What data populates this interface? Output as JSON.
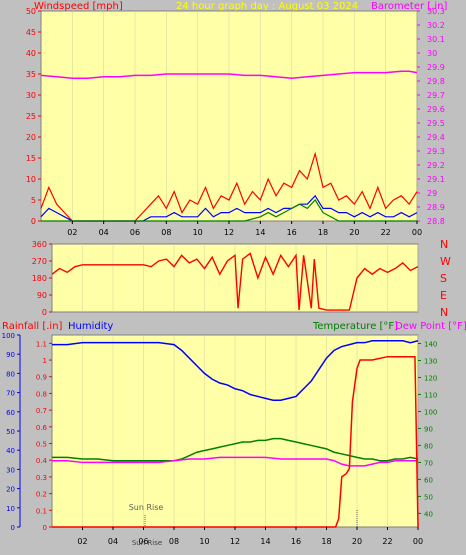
{
  "header": {
    "left_title": "Windspeed [mph]",
    "center_title": "24 hour graph day : August 03 2024",
    "right_title": "Barometer [.in]"
  },
  "colors": {
    "background": "#c0c0c0",
    "plot_bg": "#ffffa8",
    "wind_speed": "#ff0000",
    "wind_gust_alt": "#0000ff",
    "wind_green": "#008000",
    "barometer": "#ff00ff",
    "direction": "#ff0000",
    "rainfall": "#ff0000",
    "humidity": "#0000ff",
    "temperature": "#008000",
    "dew_point": "#ff00ff"
  },
  "chart_data": [
    {
      "type": "line",
      "name": "wind-baro",
      "x_ticks": [
        "02",
        "04",
        "06",
        "08",
        "10",
        "12",
        "14",
        "16",
        "18",
        "20",
        "22",
        "00"
      ],
      "xlim": [
        0,
        24
      ],
      "ylim_left": [
        0,
        50
      ],
      "yticks_left": [
        0,
        5,
        10,
        15,
        20,
        25,
        30,
        35,
        40,
        45,
        50
      ],
      "ylim_right": [
        28.8,
        30.3
      ],
      "yticks_right": [
        "28.8",
        "28.9",
        "29",
        "29.1",
        "29.2",
        "29.3",
        "29.4",
        "29.5",
        "29.6",
        "29.7",
        "29.8",
        "29.9",
        "30",
        "30.1",
        "30.2",
        "30.3"
      ],
      "series": [
        {
          "key": "barometer",
          "axis": "right",
          "x": [
            0,
            1,
            2,
            3,
            4,
            5,
            6,
            7,
            8,
            9,
            10,
            11,
            12,
            13,
            14,
            15,
            16,
            17,
            18,
            19,
            20,
            21,
            22,
            23,
            23.5,
            24
          ],
          "values": [
            29.84,
            29.83,
            29.82,
            29.82,
            29.83,
            29.83,
            29.84,
            29.84,
            29.85,
            29.85,
            29.85,
            29.85,
            29.85,
            29.84,
            29.84,
            29.83,
            29.82,
            29.83,
            29.84,
            29.85,
            29.86,
            29.86,
            29.86,
            29.87,
            29.87,
            29.86
          ]
        },
        {
          "key": "wind_speed",
          "axis": "left",
          "x": [
            0,
            0.5,
            1,
            1.5,
            2,
            3,
            4,
            5,
            6,
            6.5,
            7,
            7.5,
            8,
            8.5,
            9,
            9.5,
            10,
            10.5,
            11,
            11.5,
            12,
            12.5,
            13,
            13.5,
            14,
            14.5,
            15,
            15.5,
            16,
            16.5,
            17,
            17.5,
            18,
            18.5,
            19,
            19.5,
            20,
            20.5,
            21,
            21.5,
            22,
            22.5,
            23,
            23.5,
            24
          ],
          "values": [
            3,
            8,
            4,
            2,
            0,
            0,
            0,
            0,
            0,
            2,
            4,
            6,
            3,
            7,
            2,
            5,
            4,
            8,
            3,
            6,
            5,
            9,
            4,
            7,
            5,
            10,
            6,
            9,
            8,
            12,
            10,
            16,
            8,
            9,
            5,
            6,
            4,
            7,
            3,
            8,
            3,
            5,
            6,
            4,
            7
          ]
        },
        {
          "key": "wind_gust_alt",
          "axis": "left",
          "x": [
            0,
            0.5,
            1,
            1.5,
            2,
            3,
            4,
            5,
            6,
            6.5,
            7,
            7.5,
            8,
            8.5,
            9,
            9.5,
            10,
            10.5,
            11,
            11.5,
            12,
            12.5,
            13,
            13.5,
            14,
            14.5,
            15,
            15.5,
            16,
            16.5,
            17,
            17.5,
            18,
            18.5,
            19,
            19.5,
            20,
            20.5,
            21,
            21.5,
            22,
            22.5,
            23,
            23.5,
            24
          ],
          "values": [
            1,
            3,
            2,
            1,
            0,
            0,
            0,
            0,
            0,
            0,
            1,
            1,
            1,
            2,
            1,
            1,
            1,
            3,
            1,
            2,
            2,
            3,
            2,
            2,
            2,
            3,
            2,
            3,
            3,
            4,
            4,
            6,
            3,
            3,
            2,
            2,
            1,
            2,
            1,
            2,
            1,
            1,
            2,
            1,
            2
          ]
        },
        {
          "key": "wind_green",
          "axis": "left",
          "x": [
            0,
            1,
            2,
            12,
            13,
            14,
            14.5,
            15,
            15.5,
            16,
            16.5,
            17,
            17.5,
            18,
            19,
            24
          ],
          "values": [
            0,
            0,
            0,
            0,
            0,
            1,
            2,
            1,
            2,
            3,
            4,
            3,
            5,
            2,
            0,
            0
          ]
        }
      ]
    },
    {
      "type": "line",
      "name": "wind-direction",
      "right_labels": [
        "N",
        "W",
        "S",
        "E",
        "N"
      ],
      "yticks": [
        0,
        90,
        180,
        270,
        360
      ],
      "ylim": [
        0,
        360
      ],
      "xlim": [
        0,
        24
      ],
      "series": [
        {
          "key": "direction",
          "x": [
            0,
            0.5,
            1,
            1.5,
            2,
            3,
            4,
            5,
            6,
            6.5,
            7,
            7.5,
            8,
            8.5,
            9,
            9.5,
            10,
            10.5,
            11,
            11.5,
            12,
            12.2,
            12.5,
            13,
            13.5,
            14,
            14.5,
            15,
            15.5,
            16,
            16.2,
            16.5,
            17,
            17.2,
            17.5,
            18,
            18.5,
            19,
            19.5,
            20,
            20.5,
            21,
            21.5,
            22,
            22.5,
            23,
            23.5,
            24
          ],
          "values": [
            200,
            230,
            210,
            240,
            250,
            250,
            250,
            250,
            250,
            240,
            270,
            280,
            240,
            300,
            260,
            280,
            230,
            290,
            200,
            270,
            300,
            20,
            280,
            310,
            180,
            290,
            200,
            300,
            240,
            300,
            10,
            300,
            20,
            280,
            20,
            10,
            10,
            10,
            10,
            180,
            230,
            200,
            230,
            210,
            230,
            260,
            220,
            240
          ]
        }
      ]
    },
    {
      "type": "line",
      "name": "rain-humidity-temp",
      "headers": {
        "rainfall": "Rainfall [.in]",
        "humidity": "Humidity",
        "temperature": "Temperature [°F]",
        "dew_point": "Dew Point [°F]"
      },
      "x_ticks": [
        "02",
        "04",
        "06",
        "08",
        "10",
        "12",
        "14",
        "16",
        "18",
        "20",
        "22",
        "00"
      ],
      "xlim": [
        0,
        24
      ],
      "y_humidity": {
        "ticks": [
          0,
          10,
          20,
          30,
          40,
          50,
          60,
          70,
          80,
          90,
          100
        ],
        "lim": [
          0,
          100
        ]
      },
      "y_rain": {
        "ticks": [
          "0",
          "0.1",
          "0.2",
          "0.3",
          "0.4",
          "0.5",
          "0.6",
          "0.7",
          "0.8",
          "0.9",
          "1",
          "1.1"
        ],
        "lim": [
          0,
          1.15
        ]
      },
      "y_temp": {
        "ticks": [
          40,
          50,
          60,
          70,
          80,
          90,
          100,
          110,
          120,
          130,
          140
        ],
        "lim": [
          32,
          145
        ]
      },
      "sun_rise": {
        "label": "Sun Rise",
        "x": 6.1
      },
      "sun_set": {
        "label": "Sun Rise",
        "x": 20
      },
      "series": [
        {
          "key": "humidity",
          "axis": "humidity",
          "x": [
            0,
            1,
            2,
            3,
            4,
            5,
            6,
            7,
            8,
            8.5,
            9,
            9.5,
            10,
            10.5,
            11,
            11.5,
            12,
            12.5,
            13,
            13.5,
            14,
            14.5,
            15,
            15.5,
            16,
            16.5,
            17,
            17.5,
            18,
            18.5,
            19,
            19.5,
            20,
            20.5,
            21,
            21.5,
            22,
            22.5,
            23,
            23.5,
            24
          ],
          "values": [
            95,
            95,
            96,
            96,
            96,
            96,
            96,
            96,
            95,
            92,
            88,
            84,
            80,
            77,
            75,
            74,
            72,
            71,
            69,
            68,
            67,
            66,
            66,
            67,
            68,
            72,
            76,
            82,
            88,
            92,
            94,
            95,
            96,
            96,
            97,
            97,
            97,
            97,
            97,
            96,
            97
          ]
        },
        {
          "key": "temperature",
          "axis": "temp",
          "x": [
            0,
            1,
            2,
            3,
            4,
            5,
            6,
            7,
            8,
            8.5,
            9,
            9.5,
            10,
            10.5,
            11,
            11.5,
            12,
            12.5,
            13,
            13.5,
            14,
            14.5,
            15,
            15.5,
            16,
            16.5,
            17,
            17.5,
            18,
            18.5,
            19,
            19.5,
            20,
            20.5,
            21,
            21.5,
            22,
            22.5,
            23,
            23.5,
            24
          ],
          "values": [
            73,
            73,
            72,
            72,
            71,
            71,
            71,
            71,
            71,
            72,
            74,
            76,
            77,
            78,
            79,
            80,
            81,
            82,
            82,
            83,
            83,
            84,
            84,
            83,
            82,
            81,
            80,
            79,
            78,
            76,
            75,
            74,
            73,
            72,
            72,
            71,
            71,
            72,
            72,
            73,
            72
          ]
        },
        {
          "key": "dew_point",
          "axis": "temp",
          "x": [
            0,
            1,
            2,
            3,
            4,
            5,
            6,
            7,
            8,
            9,
            10,
            11,
            12,
            13,
            14,
            15,
            16,
            17,
            18,
            18.5,
            19,
            19.5,
            20,
            20.5,
            21,
            21.5,
            22,
            22.5,
            23,
            23.5,
            24
          ],
          "values": [
            71,
            71,
            70,
            70,
            70,
            70,
            70,
            70,
            71,
            72,
            72,
            73,
            73,
            73,
            73,
            72,
            72,
            72,
            72,
            71,
            69,
            68,
            68,
            68,
            69,
            70,
            70,
            71,
            71,
            71,
            71
          ]
        },
        {
          "key": "rainfall",
          "axis": "rain",
          "x": [
            0,
            18.5,
            18.6,
            18.8,
            19,
            19.3,
            19.5,
            19.7,
            20,
            20.2,
            21,
            22,
            23,
            23.5,
            23.8,
            24
          ],
          "values": [
            0,
            0,
            0,
            0.05,
            0.3,
            0.32,
            0.35,
            0.75,
            0.95,
            1.0,
            1.0,
            1.02,
            1.02,
            1.02,
            1.02,
            0
          ]
        }
      ]
    }
  ]
}
